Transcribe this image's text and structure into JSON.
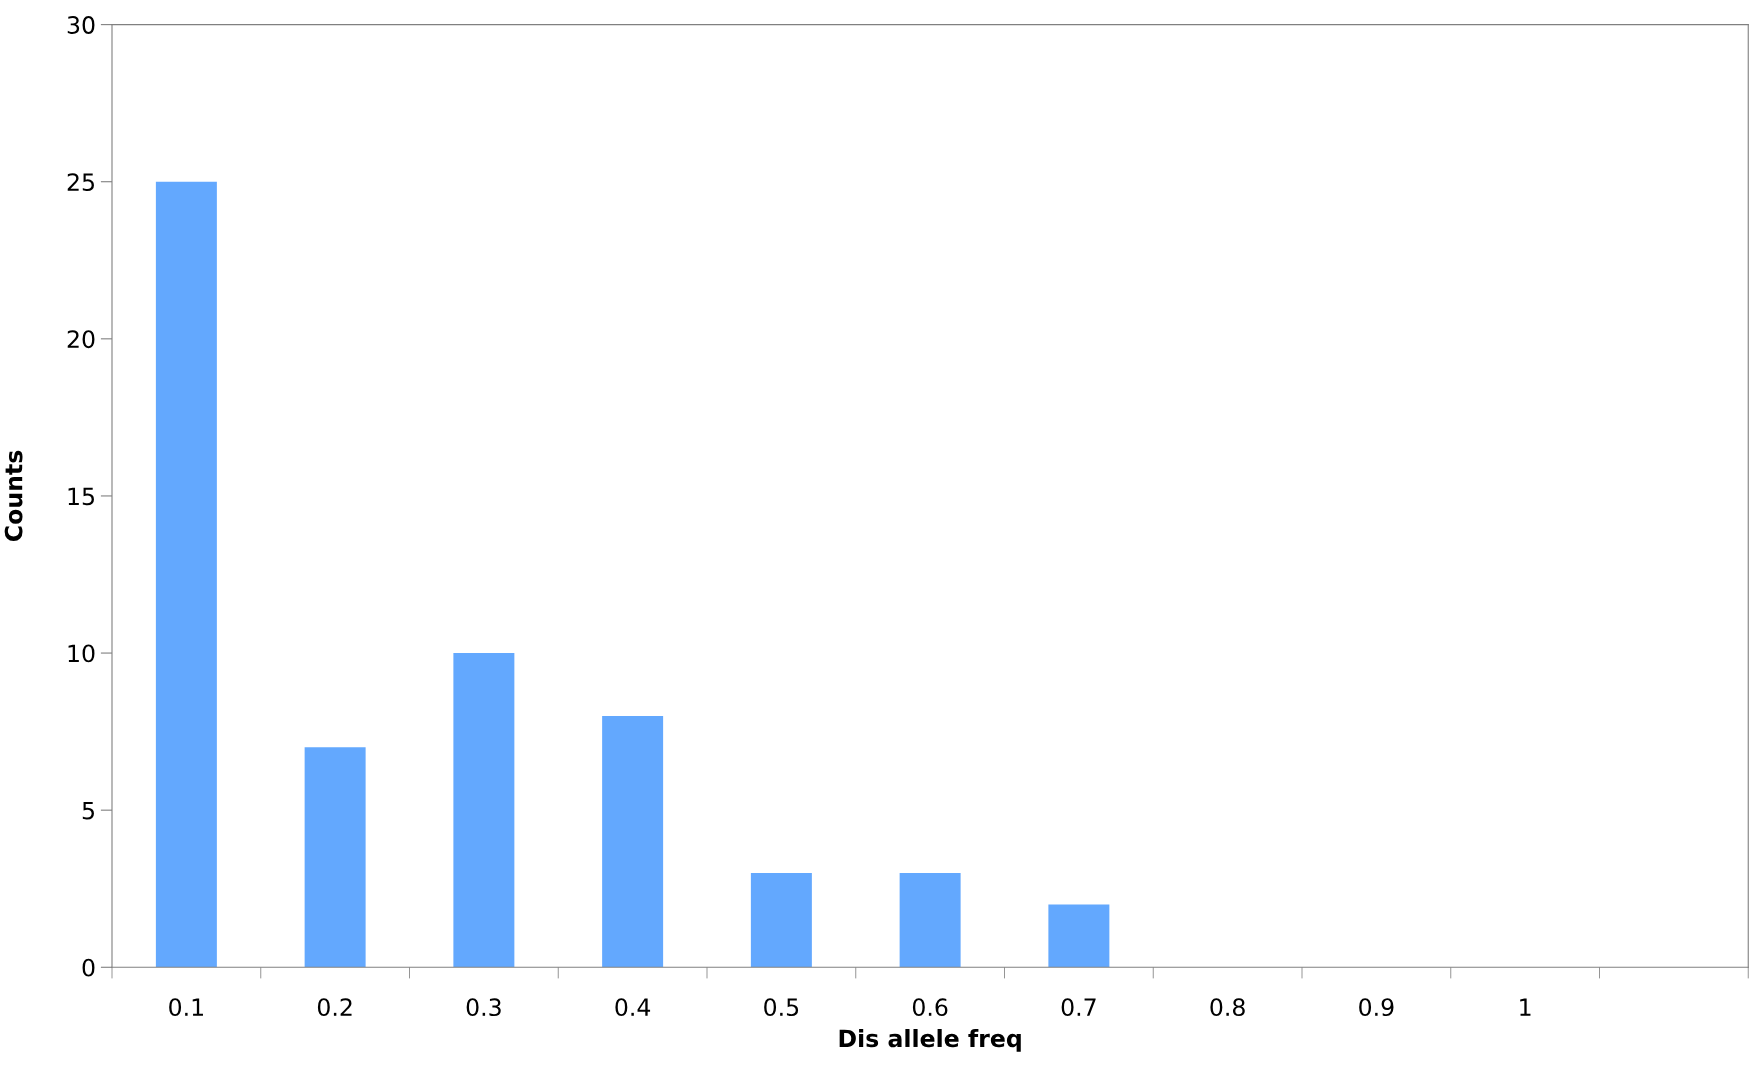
{
  "chart_data": {
    "type": "bar",
    "xlabel": "Dis allele freq",
    "ylabel": "Counts",
    "categories": [
      "0.1",
      "0.2",
      "0.3",
      "0.4",
      "0.5",
      "0.6",
      "0.7",
      "0.8",
      "0.9",
      "1",
      null
    ],
    "values": [
      25,
      7,
      10,
      8,
      3,
      3,
      2,
      0,
      0,
      0,
      null
    ],
    "color": "#63a8fe",
    "ylim": [
      0,
      30
    ],
    "yticks": [
      0,
      5,
      10,
      15,
      20,
      25,
      30
    ],
    "grid": false
  }
}
